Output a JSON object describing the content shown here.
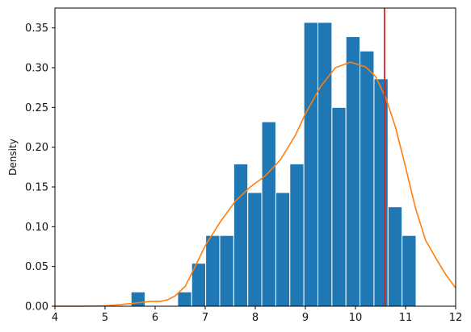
{
  "chart_data": {
    "type": "bar",
    "ylabel": "Density",
    "xlim": [
      4,
      12
    ],
    "ylim": [
      0,
      0.375
    ],
    "x_ticks": [
      4,
      5,
      6,
      7,
      8,
      9,
      10,
      11,
      12
    ],
    "x_tick_labels": [
      "4",
      "5",
      "6",
      "7",
      "8",
      "9",
      "10",
      "11",
      "12"
    ],
    "y_ticks": [
      0,
      0.05,
      0.1,
      0.15,
      0.2,
      0.25,
      0.3,
      0.35
    ],
    "y_tick_labels": [
      "0.00",
      "0.05",
      "0.10",
      "0.15",
      "0.20",
      "0.25",
      "0.30",
      "0.35"
    ],
    "grid": false,
    "histogram": {
      "color": "#1f77b4",
      "edge_color": "#ffffff",
      "bins": [
        {
          "x0": 5.52,
          "x1": 5.8,
          "value": 0.018
        },
        {
          "x0": 6.45,
          "x1": 6.73,
          "value": 0.018
        },
        {
          "x0": 6.73,
          "x1": 7.01,
          "value": 0.054
        },
        {
          "x0": 7.01,
          "x1": 7.29,
          "value": 0.089
        },
        {
          "x0": 7.29,
          "x1": 7.57,
          "value": 0.089
        },
        {
          "x0": 7.57,
          "x1": 7.85,
          "value": 0.179
        },
        {
          "x0": 7.85,
          "x1": 8.13,
          "value": 0.143
        },
        {
          "x0": 8.13,
          "x1": 8.41,
          "value": 0.232
        },
        {
          "x0": 8.41,
          "x1": 8.69,
          "value": 0.143
        },
        {
          "x0": 8.69,
          "x1": 8.97,
          "value": 0.179
        },
        {
          "x0": 8.97,
          "x1": 9.25,
          "value": 0.357
        },
        {
          "x0": 9.25,
          "x1": 9.53,
          "value": 0.357
        },
        {
          "x0": 9.53,
          "x1": 9.81,
          "value": 0.25
        },
        {
          "x0": 9.81,
          "x1": 10.09,
          "value": 0.339
        },
        {
          "x0": 10.09,
          "x1": 10.37,
          "value": 0.321
        },
        {
          "x0": 10.37,
          "x1": 10.65,
          "value": 0.286
        },
        {
          "x0": 10.65,
          "x1": 10.93,
          "value": 0.125
        },
        {
          "x0": 10.93,
          "x1": 11.21,
          "value": 0.089
        }
      ]
    },
    "kde_line": {
      "color": "#ff7f0e",
      "points": [
        [
          4.0,
          0.0
        ],
        [
          4.5,
          0.0
        ],
        [
          5.0,
          0.0005
        ],
        [
          5.3,
          0.002
        ],
        [
          5.6,
          0.004
        ],
        [
          5.9,
          0.006
        ],
        [
          6.1,
          0.006
        ],
        [
          6.25,
          0.008
        ],
        [
          6.4,
          0.013
        ],
        [
          6.6,
          0.025
        ],
        [
          6.8,
          0.05
        ],
        [
          7.0,
          0.076
        ],
        [
          7.3,
          0.106
        ],
        [
          7.6,
          0.132
        ],
        [
          7.9,
          0.15
        ],
        [
          8.2,
          0.164
        ],
        [
          8.5,
          0.184
        ],
        [
          8.8,
          0.215
        ],
        [
          9.0,
          0.242
        ],
        [
          9.3,
          0.276
        ],
        [
          9.6,
          0.3
        ],
        [
          9.9,
          0.307
        ],
        [
          10.2,
          0.301
        ],
        [
          10.4,
          0.289
        ],
        [
          10.6,
          0.263
        ],
        [
          10.8,
          0.225
        ],
        [
          11.0,
          0.175
        ],
        [
          11.2,
          0.123
        ],
        [
          11.4,
          0.083
        ],
        [
          11.6,
          0.061
        ],
        [
          11.8,
          0.04
        ],
        [
          12.0,
          0.023
        ]
      ]
    },
    "vertical_line": {
      "x": 10.58,
      "color": "#e02020"
    }
  }
}
